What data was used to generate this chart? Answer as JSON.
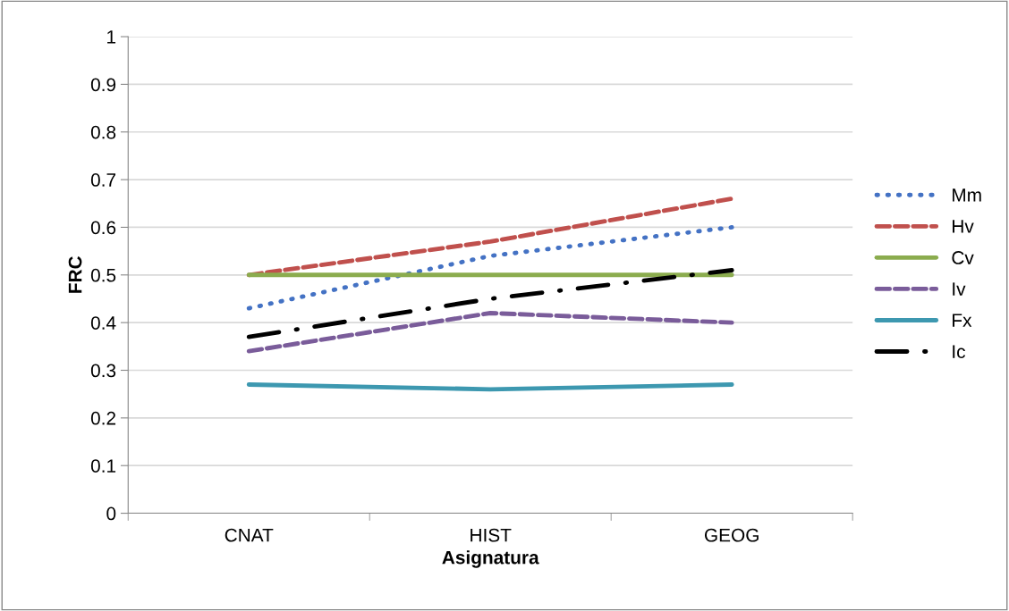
{
  "chart_data": {
    "type": "line",
    "xlabel": "Asignatura",
    "ylabel": "FRC",
    "categories": [
      "CNAT",
      "HIST",
      "GEOG"
    ],
    "series": [
      {
        "name": "Mm",
        "color": "#4472c4",
        "line_style": "dotted",
        "values": [
          0.43,
          0.54,
          0.6
        ]
      },
      {
        "name": "Hv",
        "color": "#c0504d",
        "line_style": "dashed",
        "values": [
          0.5,
          0.57,
          0.66
        ]
      },
      {
        "name": "Cv",
        "color": "#8bac4e",
        "line_style": "solid",
        "values": [
          0.5,
          0.5,
          0.5
        ]
      },
      {
        "name": "Iv",
        "color": "#7a5c9a",
        "line_style": "dashed",
        "values": [
          0.34,
          0.42,
          0.4
        ]
      },
      {
        "name": "Fx",
        "color": "#3d98b0",
        "line_style": "solid",
        "values": [
          0.27,
          0.26,
          0.27
        ]
      },
      {
        "name": "Ic",
        "color": "#000000",
        "line_style": "dashdot",
        "values": [
          0.37,
          0.45,
          0.51
        ]
      }
    ],
    "ylim": [
      0,
      1
    ],
    "yticks": [
      0,
      0.1,
      0.2,
      0.3,
      0.4,
      0.5,
      0.6,
      0.7,
      0.8,
      0.9,
      1
    ],
    "grid": "y",
    "legend": "right",
    "marker": "none"
  }
}
